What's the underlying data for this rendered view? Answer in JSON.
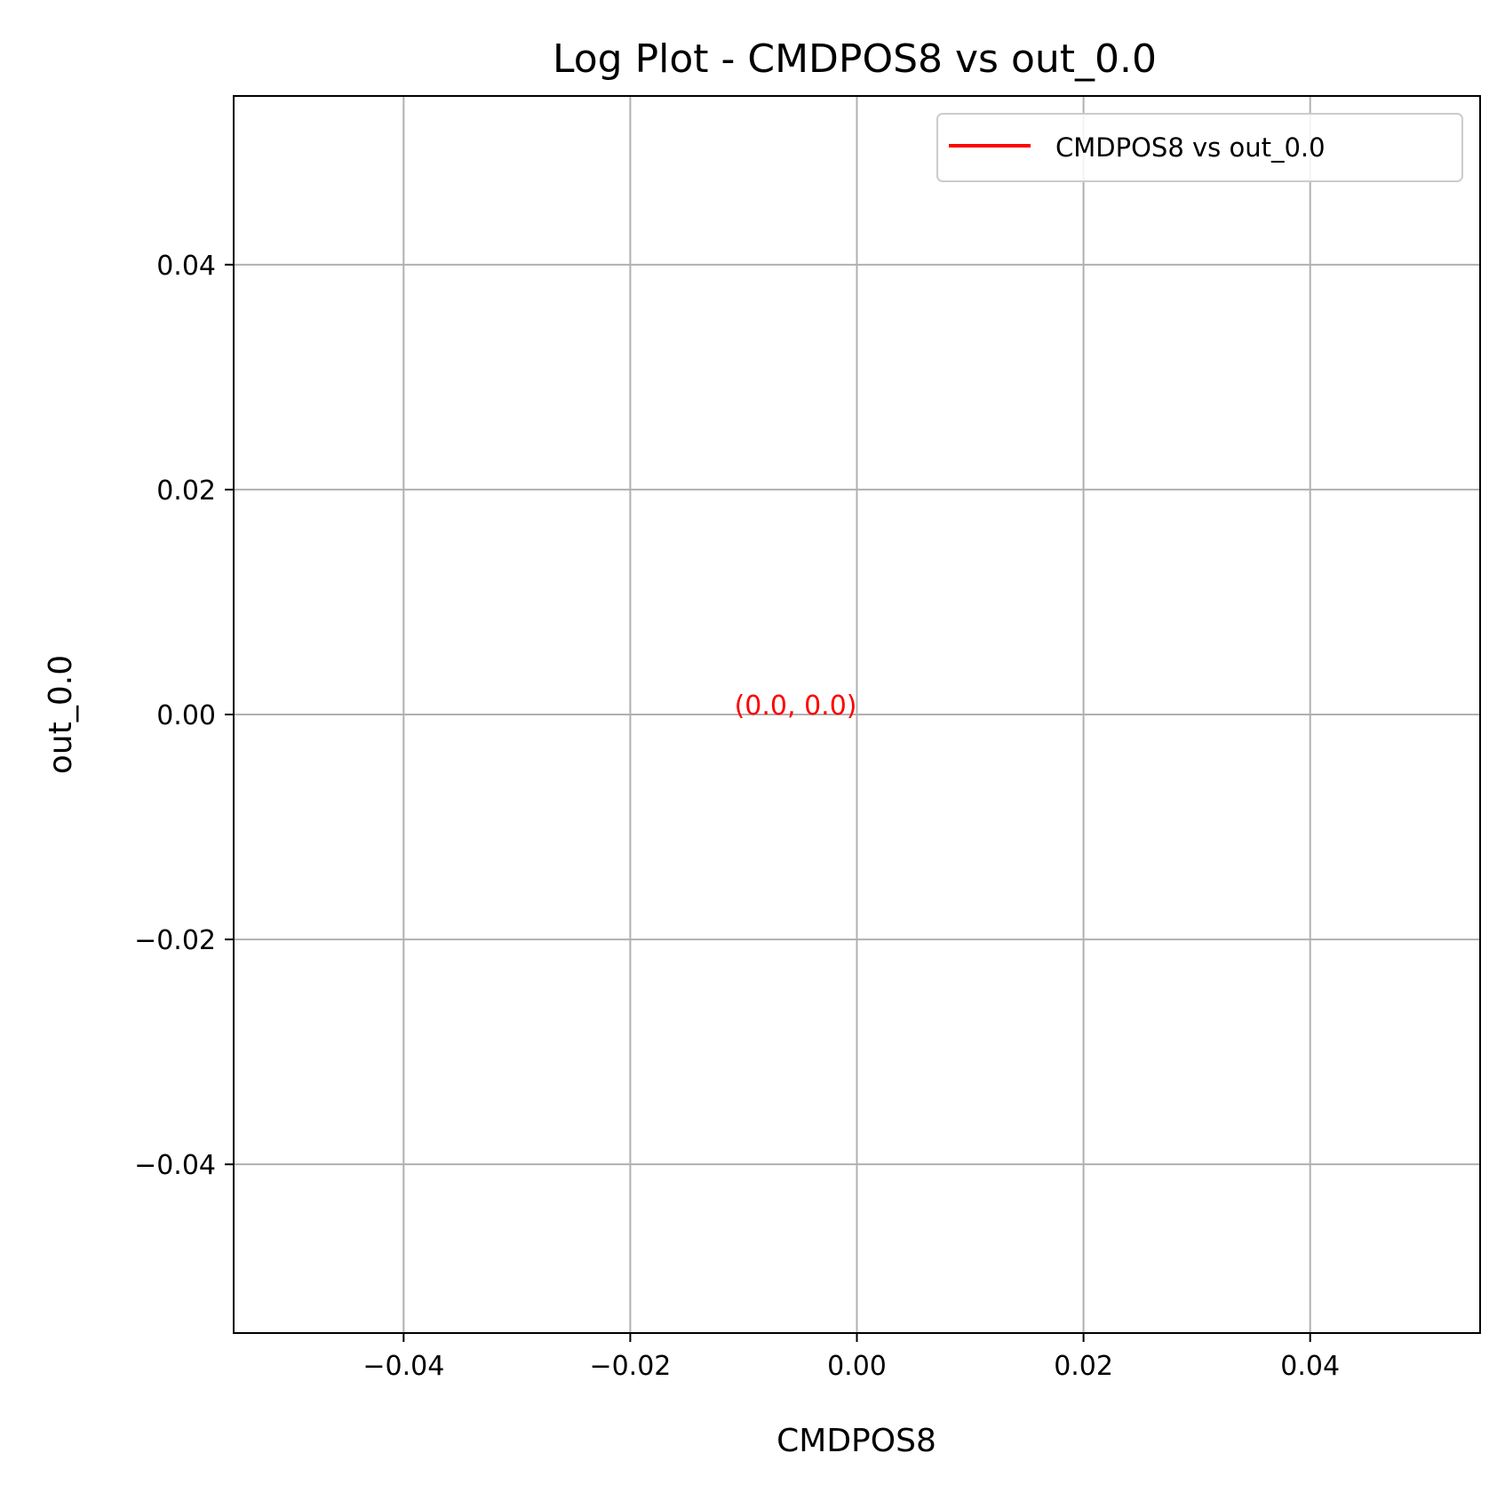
{
  "chart_data": {
    "type": "line",
    "title": "Log Plot - CMDPOS8 vs out_0.0",
    "xlabel": "CMDPOS8",
    "ylabel": "out_0.0",
    "xlim": [
      -0.055,
      0.055
    ],
    "ylim": [
      -0.055,
      0.055
    ],
    "x_ticks": [
      -0.04,
      -0.02,
      0.0,
      0.02,
      0.04
    ],
    "y_ticks": [
      -0.04,
      -0.02,
      0.0,
      0.02,
      0.04
    ],
    "x_tick_labels": [
      "−0.04",
      "−0.02",
      "0.00",
      "0.02",
      "0.04"
    ],
    "y_tick_labels": [
      "−0.04",
      "−0.02",
      "0.00",
      "0.02",
      "0.04"
    ],
    "grid": true,
    "legend_position": "top-right",
    "series": [
      {
        "name": "CMDPOS8 vs out_0.0",
        "color": "#ff0000",
        "x": [
          0.0
        ],
        "y": [
          0.0
        ]
      }
    ],
    "annotations": [
      {
        "text": "(0.0, 0.0)",
        "x": 0.0,
        "y": 0.0,
        "color": "#ff0000"
      }
    ]
  }
}
